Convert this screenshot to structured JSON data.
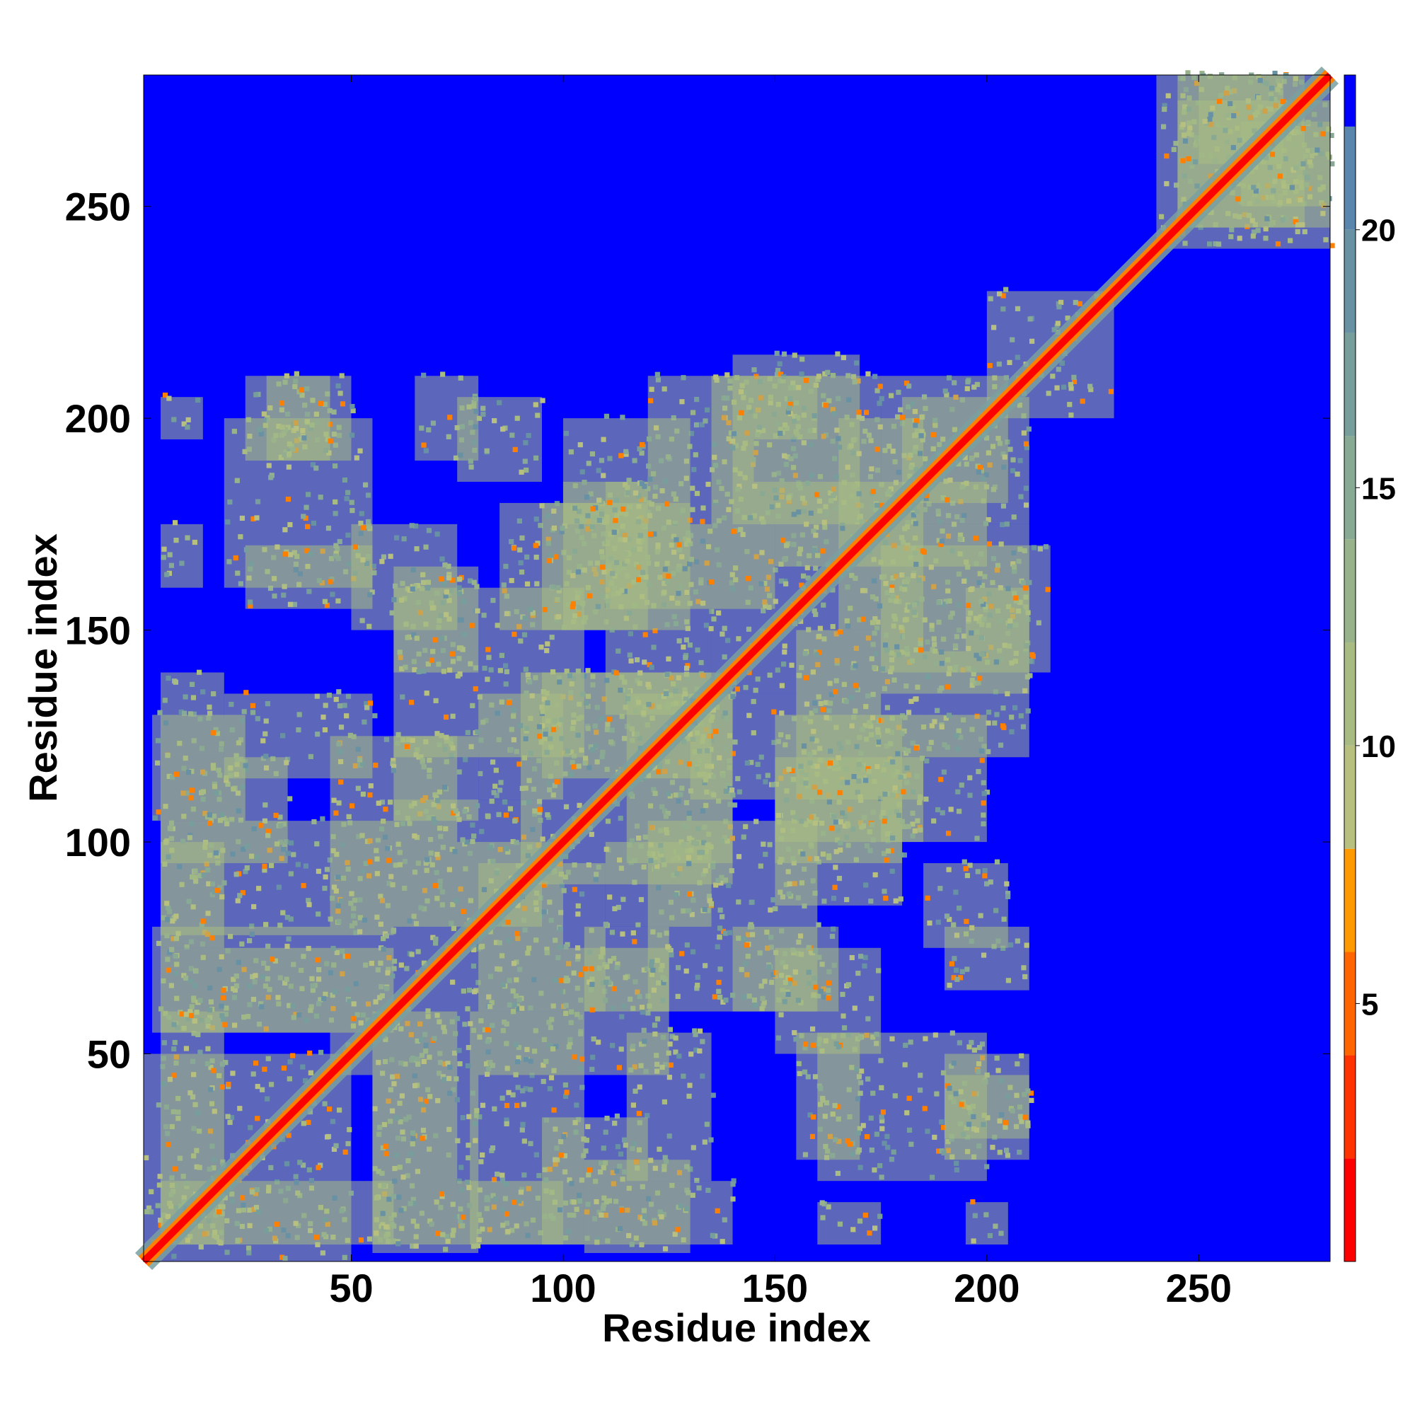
{
  "chart_data": {
    "type": "heatmap",
    "title": "",
    "xlabel": "Residue index",
    "ylabel": "Residue index",
    "xlim": [
      1,
      281
    ],
    "ylim": [
      1,
      281
    ],
    "xticks": [
      50,
      100,
      150,
      200,
      250
    ],
    "yticks": [
      50,
      100,
      150,
      200,
      250
    ],
    "colorbar": {
      "range": [
        0,
        23
      ],
      "ticks": [
        5,
        10,
        15,
        20
      ],
      "bands": [
        {
          "from": 0,
          "to": 2,
          "color": "#ff0000"
        },
        {
          "from": 2,
          "to": 4,
          "color": "#ff3300"
        },
        {
          "from": 4,
          "to": 6,
          "color": "#ff6600"
        },
        {
          "from": 6,
          "to": 8,
          "color": "#ff9900"
        },
        {
          "from": 8,
          "to": 10,
          "color": "#b8c07f"
        },
        {
          "from": 10,
          "to": 12,
          "color": "#a8bb83"
        },
        {
          "from": 12,
          "to": 14,
          "color": "#98b38b"
        },
        {
          "from": 14,
          "to": 16,
          "color": "#88a994"
        },
        {
          "from": 16,
          "to": 18,
          "color": "#789e9c"
        },
        {
          "from": 18,
          "to": 20,
          "color": "#6892a4"
        },
        {
          "from": 20,
          "to": 22,
          "color": "#5a85ac"
        },
        {
          "from": 22,
          "to": 23,
          "color": "#0000ff"
        }
      ]
    },
    "background_color": "#0000ff",
    "diagonal_color": "#ff0000",
    "contact_color": "#a8bb83",
    "close_contact_color": "#ff8000",
    "regions": [
      [
        1,
        50,
        1,
        50
      ],
      [
        5,
        60,
        5,
        20
      ],
      [
        5,
        60,
        55,
        75
      ],
      [
        5,
        60,
        78,
        105
      ],
      [
        5,
        20,
        120,
        140
      ],
      [
        5,
        15,
        160,
        175
      ],
      [
        5,
        15,
        195,
        205
      ],
      [
        20,
        55,
        115,
        135
      ],
      [
        25,
        55,
        155,
        170
      ],
      [
        25,
        50,
        190,
        210
      ],
      [
        45,
        100,
        45,
        100
      ],
      [
        55,
        80,
        3,
        45
      ],
      [
        60,
        80,
        105,
        125
      ],
      [
        60,
        80,
        140,
        165
      ],
      [
        65,
        80,
        190,
        210
      ],
      [
        75,
        100,
        5,
        20
      ],
      [
        80,
        110,
        60,
        95
      ],
      [
        80,
        100,
        110,
        135
      ],
      [
        85,
        110,
        150,
        180
      ],
      [
        90,
        140,
        90,
        140
      ],
      [
        95,
        120,
        5,
        35
      ],
      [
        100,
        125,
        45,
        75
      ],
      [
        100,
        120,
        150,
        185
      ],
      [
        105,
        130,
        3,
        25
      ],
      [
        110,
        135,
        130,
        175
      ],
      [
        115,
        140,
        95,
        135
      ],
      [
        120,
        160,
        60,
        105
      ],
      [
        120,
        145,
        185,
        210
      ],
      [
        135,
        180,
        135,
        180
      ],
      [
        140,
        170,
        175,
        215
      ],
      [
        150,
        175,
        50,
        75
      ],
      [
        150,
        180,
        95,
        130
      ],
      [
        155,
        185,
        110,
        150
      ],
      [
        160,
        200,
        20,
        55
      ],
      [
        165,
        185,
        150,
        200
      ],
      [
        175,
        200,
        100,
        130
      ],
      [
        180,
        210,
        175,
        205
      ],
      [
        180,
        210,
        135,
        175
      ],
      [
        185,
        205,
        75,
        95
      ],
      [
        190,
        210,
        30,
        45
      ],
      [
        195,
        210,
        145,
        160
      ],
      [
        200,
        230,
        200,
        230
      ],
      [
        240,
        281,
        240,
        281
      ],
      [
        245,
        281,
        245,
        275
      ],
      [
        260,
        281,
        250,
        270
      ]
    ],
    "grid": false,
    "legend": "none"
  }
}
